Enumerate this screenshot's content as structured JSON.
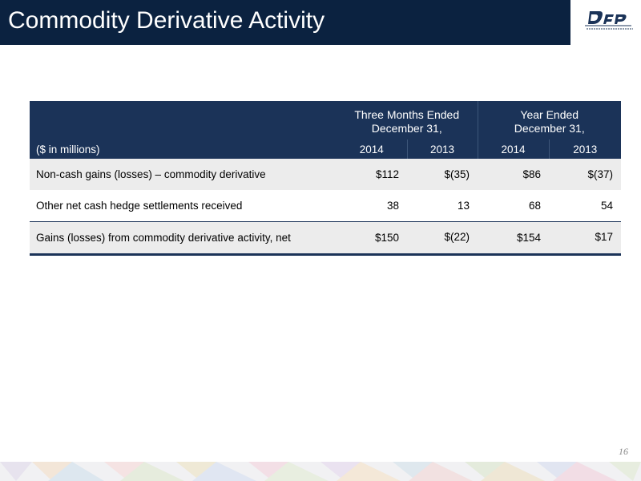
{
  "title": "Commodity Derivative Activity",
  "table": {
    "group_headers": [
      {
        "line1": "Three Months Ended",
        "line2": "December 31,"
      },
      {
        "line1": "Year Ended",
        "line2": "December 31,"
      }
    ],
    "units_label": "($ in millions)",
    "years": [
      "2014",
      "2013",
      "2014",
      "2013"
    ],
    "rows": [
      {
        "label": "Non-cash gains (losses) – commodity derivative",
        "values": [
          "$112",
          "$(35)",
          "$86",
          "$(37)"
        ]
      },
      {
        "label": "Other net cash hedge settlements received",
        "values": [
          "38",
          "13",
          "68",
          "54"
        ]
      },
      {
        "label": "Gains (losses) from commodity derivative activity, net",
        "values": [
          "$150",
          "$(22)",
          "$154",
          "$17"
        ]
      }
    ]
  },
  "page_number": "16",
  "colors": {
    "header_bg": "#0b2240",
    "table_header_bg": "#1b3358",
    "row_shade": "#ececec",
    "logo_accent": "#1b3358"
  }
}
